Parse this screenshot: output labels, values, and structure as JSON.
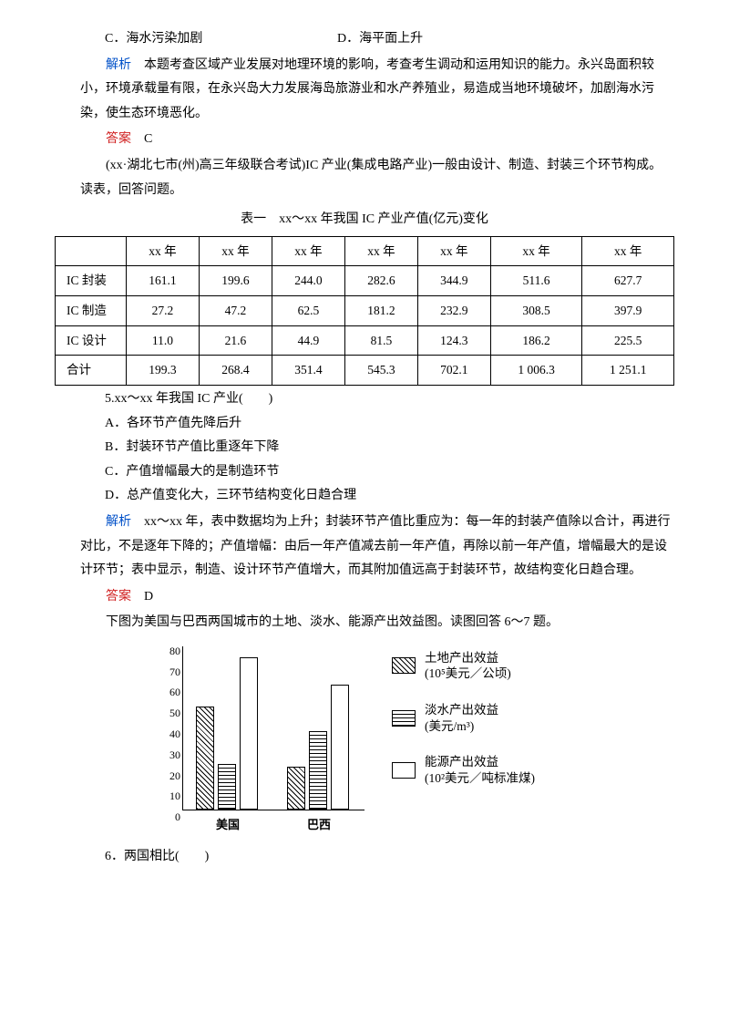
{
  "opts_cd": {
    "c": "C．海水污染加剧",
    "d": "D．海平面上升"
  },
  "analysis1_label": "解析",
  "analysis1_text": "　本题考查区域产业发展对地理环境的影响，考查考生调动和运用知识的能力。永兴岛面积较小，环境承载量有限，在永兴岛大力发展海岛旅游业和水产养殖业，易造成当地环境破坏，加剧海水污染，使生态环境恶化。",
  "answer_label": "答案",
  "answer1": "　C",
  "stem2": "(xx·湖北七市(州)高三年级联合考试)IC 产业(集成电路产业)一般由设计、制造、封装三个环节构成。读表，回答问题。",
  "table_title": "表一　xx～xx 年我国 IC 产业产值(亿元)变化",
  "table": {
    "headers": [
      "",
      "xx 年",
      "xx 年",
      "xx 年",
      "xx 年",
      "xx 年",
      "xx 年",
      "xx 年"
    ],
    "rows": [
      [
        "IC 封装",
        "161.1",
        "199.6",
        "244.0",
        "282.6",
        "344.9",
        "511.6",
        "627.7"
      ],
      [
        "IC 制造",
        "27.2",
        "47.2",
        "62.5",
        "181.2",
        "232.9",
        "308.5",
        "397.9"
      ],
      [
        "IC 设计",
        "11.0",
        "21.6",
        "44.9",
        "81.5",
        "124.3",
        "186.2",
        "225.5"
      ],
      [
        "合计",
        "199.3",
        "268.4",
        "351.4",
        "545.3",
        "702.1",
        "1 006.3",
        "1 251.1"
      ]
    ]
  },
  "q5": "5.xx～xx 年我国 IC 产业(　　)",
  "q5a": "A．各环节产值先降后升",
  "q5b": "B．封装环节产值比重逐年下降",
  "q5c": "C．产值增幅最大的是制造环节",
  "q5d": "D．总产值变化大，三环节结构变化日趋合理",
  "analysis2_text": "　xx～xx 年，表中数据均为上升；封装环节产值比重应为：每一年的封装产值除以合计，再进行对比，不是逐年下降的；产值增幅：由后一年产值减去前一年产值，再除以前一年产值，增幅最大的是设计环节；表中显示，制造、设计环节产值增大，而其附加值远高于封装环节，故结构变化日趋合理。",
  "answer2": "　D",
  "stem3": "下图为美国与巴西两国城市的土地、淡水、能源产出效益图。读图回答 6～7 题。",
  "chart": {
    "ymax": 80,
    "ystep": 10,
    "yticks": [
      "80",
      "70",
      "60",
      "50",
      "40",
      "30",
      "20",
      "10",
      "0"
    ],
    "groups": [
      {
        "label": "美国",
        "vals": [
          50,
          22,
          74
        ]
      },
      {
        "label": "巴西",
        "vals": [
          21,
          38,
          61
        ]
      }
    ],
    "bar_colors": [
      "hatch",
      "hstripe",
      "plain"
    ],
    "legend": [
      {
        "style": "hatch",
        "t1": "土地产出效益",
        "t2": "(10⁵美元／公顷)"
      },
      {
        "style": "hstripe",
        "t1": "淡水产出效益",
        "t2": "(美元/m³)"
      },
      {
        "style": "plain",
        "t1": "能源产出效益",
        "t2": "(10²美元／吨标准煤)"
      }
    ]
  },
  "q6": "6．两国相比(　　)"
}
